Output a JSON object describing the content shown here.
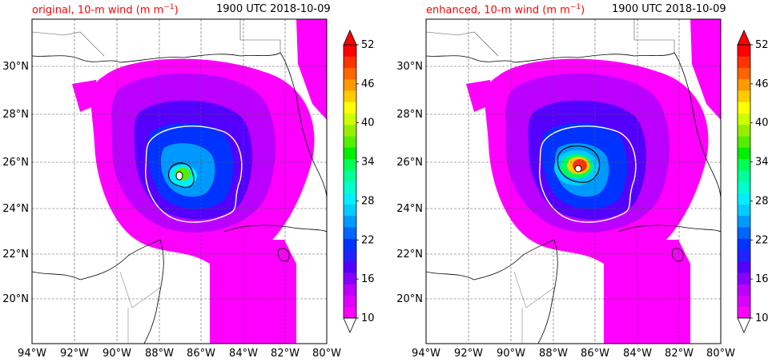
{
  "panels": [
    {
      "title_left": "original, 10-m wind (m m",
      "title_left_sup": "−1",
      "title_left_tail": ")",
      "title_right": "1900 UTC 2018-10-09",
      "title_color": "#ff0000"
    },
    {
      "title_left": "enhanced, 10-m wind (m m",
      "title_left_sup": "−1",
      "title_left_tail": ")",
      "title_right": "1900 UTC 2018-10-09",
      "title_color": "#ff0000"
    }
  ],
  "lat_labels": [
    "30°N",
    "28°N",
    "26°N",
    "24°N",
    "22°N",
    "20°N"
  ],
  "lon_labels": [
    "94°W",
    "92°W",
    "90°W",
    "88°W",
    "86°W",
    "84°W",
    "82°W",
    "80°W"
  ],
  "colorbar": {
    "ticks": [
      "52",
      "46",
      "40",
      "34",
      "28",
      "22",
      "16",
      "10"
    ],
    "colors": [
      "#ff00ff",
      "#dd00ff",
      "#bb00ff",
      "#8800ff",
      "#5500ff",
      "#2222ff",
      "#0033ff",
      "#0066ff",
      "#0099ff",
      "#00ccff",
      "#00eeff",
      "#00ffcc",
      "#00ff99",
      "#00ff55",
      "#00ee00",
      "#55ee00",
      "#99ee00",
      "#ccff00",
      "#ffff00",
      "#ffcc00",
      "#ff9900",
      "#ff6600",
      "#ff3300",
      "#ff0000"
    ]
  }
}
